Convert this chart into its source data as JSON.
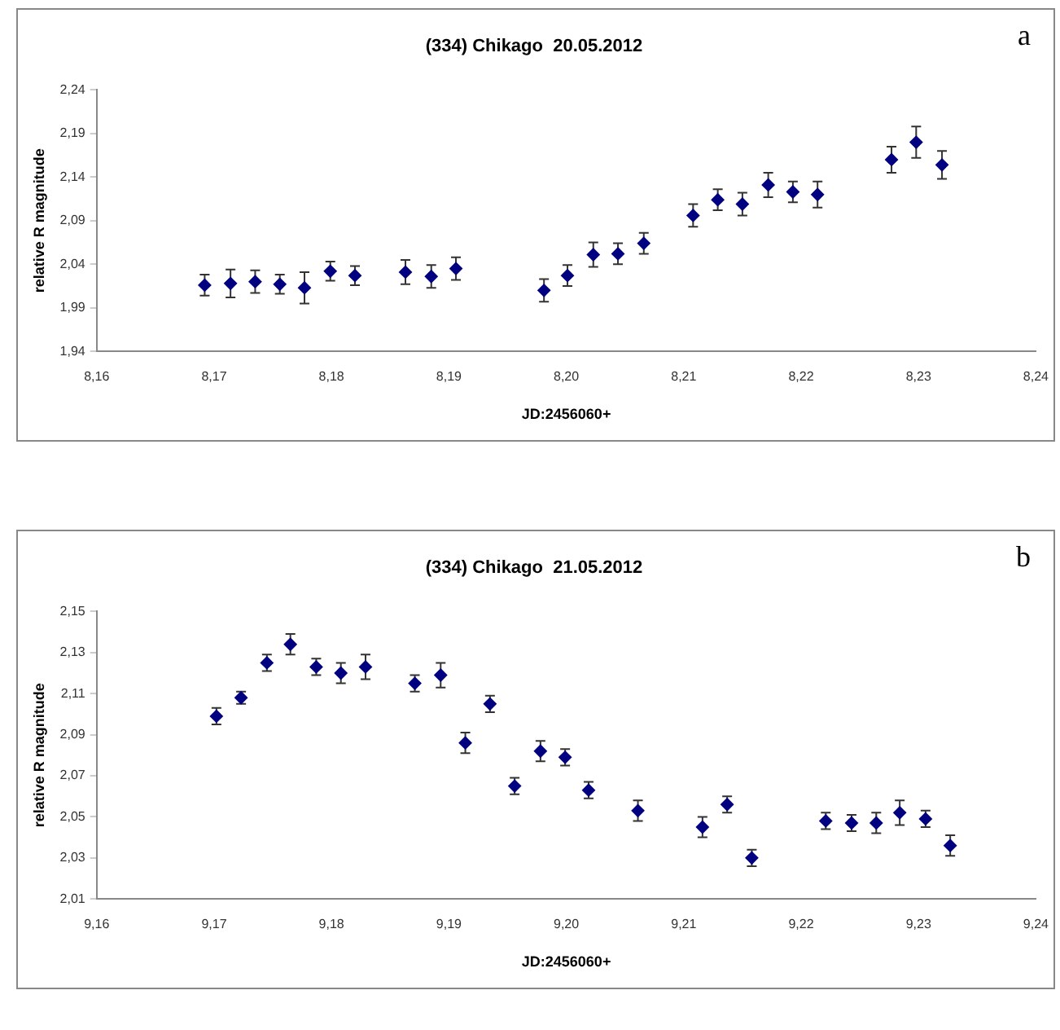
{
  "chart_data": [
    {
      "type": "scatter",
      "title": "(334) Chikago  20.05.2012",
      "xlabel": "JD:2456060+",
      "ylabel": "relative R magnitude",
      "annotations": [
        "a"
      ],
      "x": [
        8.1692,
        8.1714,
        8.1735,
        8.1756,
        8.1777,
        8.1799,
        8.182,
        8.1863,
        8.1885,
        8.1906,
        8.1981,
        8.2001,
        8.2023,
        8.2044,
        8.2066,
        8.2108,
        8.2129,
        8.215,
        8.2172,
        8.2193,
        8.2214,
        8.2277,
        8.2298,
        8.232
      ],
      "series": [
        {
          "color": "#000080",
          "values": [
            2.016,
            2.018,
            2.02,
            2.017,
            2.013,
            2.032,
            2.027,
            2.031,
            2.026,
            2.035,
            2.01,
            2.027,
            2.051,
            2.052,
            2.064,
            2.096,
            2.114,
            2.109,
            2.131,
            2.123,
            2.12,
            2.16,
            2.18,
            2.154
          ],
          "errors": [
            0.012,
            0.016,
            0.013,
            0.011,
            0.018,
            0.011,
            0.011,
            0.014,
            0.013,
            0.013,
            0.013,
            0.012,
            0.014,
            0.012,
            0.012,
            0.013,
            0.012,
            0.013,
            0.014,
            0.012,
            0.015,
            0.015,
            0.018,
            0.016
          ]
        }
      ],
      "xlim": [
        8.16,
        8.24
      ],
      "xticks": [
        {
          "value": 8.16,
          "label": "8,16"
        },
        {
          "value": 8.17,
          "label": "8,17"
        },
        {
          "value": 8.18,
          "label": "8,18"
        },
        {
          "value": 8.19,
          "label": "8,19"
        },
        {
          "value": 8.2,
          "label": "8,20"
        },
        {
          "value": 8.21,
          "label": "8,21"
        },
        {
          "value": 8.22,
          "label": "8,22"
        },
        {
          "value": 8.23,
          "label": "8,23"
        },
        {
          "value": 8.24,
          "label": "8,24"
        }
      ],
      "ylim": [
        1.94,
        2.24
      ],
      "yticks": [
        {
          "value": 1.94,
          "label": "1,94"
        },
        {
          "value": 1.99,
          "label": "1,99"
        },
        {
          "value": 2.04,
          "label": "2,04"
        },
        {
          "value": 2.09,
          "label": "2,09"
        },
        {
          "value": 2.14,
          "label": "2,14"
        },
        {
          "value": 2.19,
          "label": "2,19"
        },
        {
          "value": 2.24,
          "label": "2,24"
        }
      ],
      "grid": false,
      "legend": false,
      "marker": "diamond"
    },
    {
      "type": "scatter",
      "title": "(334) Chikago  21.05.2012",
      "xlabel": "JD:2456060+",
      "ylabel": "relative R magnitude",
      "annotations": [
        "b"
      ],
      "x": [
        9.1702,
        9.1723,
        9.1745,
        9.1765,
        9.1787,
        9.1808,
        9.1829,
        9.1871,
        9.1893,
        9.1914,
        9.1935,
        9.1956,
        9.1978,
        9.1999,
        9.2019,
        9.2061,
        9.2116,
        9.2137,
        9.2158,
        9.2221,
        9.2243,
        9.2264,
        9.2284,
        9.2306,
        9.2327
      ],
      "series": [
        {
          "color": "#000080",
          "values": [
            2.099,
            2.108,
            2.125,
            2.134,
            2.123,
            2.12,
            2.123,
            2.115,
            2.119,
            2.086,
            2.105,
            2.065,
            2.082,
            2.079,
            2.063,
            2.053,
            2.045,
            2.056,
            2.03,
            2.048,
            2.047,
            2.047,
            2.052,
            2.049,
            2.036
          ],
          "errors": [
            0.004,
            0.003,
            0.004,
            0.005,
            0.004,
            0.005,
            0.006,
            0.004,
            0.006,
            0.005,
            0.004,
            0.004,
            0.005,
            0.004,
            0.004,
            0.005,
            0.005,
            0.004,
            0.004,
            0.004,
            0.004,
            0.005,
            0.006,
            0.004,
            0.005
          ]
        }
      ],
      "xlim": [
        9.16,
        9.24
      ],
      "xticks": [
        {
          "value": 9.16,
          "label": "9,16"
        },
        {
          "value": 9.17,
          "label": "9,17"
        },
        {
          "value": 9.18,
          "label": "9,18"
        },
        {
          "value": 9.19,
          "label": "9,19"
        },
        {
          "value": 9.2,
          "label": "9,20"
        },
        {
          "value": 9.21,
          "label": "9,21"
        },
        {
          "value": 9.22,
          "label": "9,22"
        },
        {
          "value": 9.23,
          "label": "9,23"
        },
        {
          "value": 9.24,
          "label": "9,24"
        }
      ],
      "ylim": [
        2.01,
        2.15
      ],
      "yticks": [
        {
          "value": 2.01,
          "label": "2,01"
        },
        {
          "value": 2.03,
          "label": "2,03"
        },
        {
          "value": 2.05,
          "label": "2,05"
        },
        {
          "value": 2.07,
          "label": "2,07"
        },
        {
          "value": 2.09,
          "label": "2,09"
        },
        {
          "value": 2.11,
          "label": "2,11"
        },
        {
          "value": 2.13,
          "label": "2,13"
        },
        {
          "value": 2.15,
          "label": "2,15"
        }
      ],
      "grid": false,
      "legend": false,
      "marker": "diamond"
    }
  ]
}
